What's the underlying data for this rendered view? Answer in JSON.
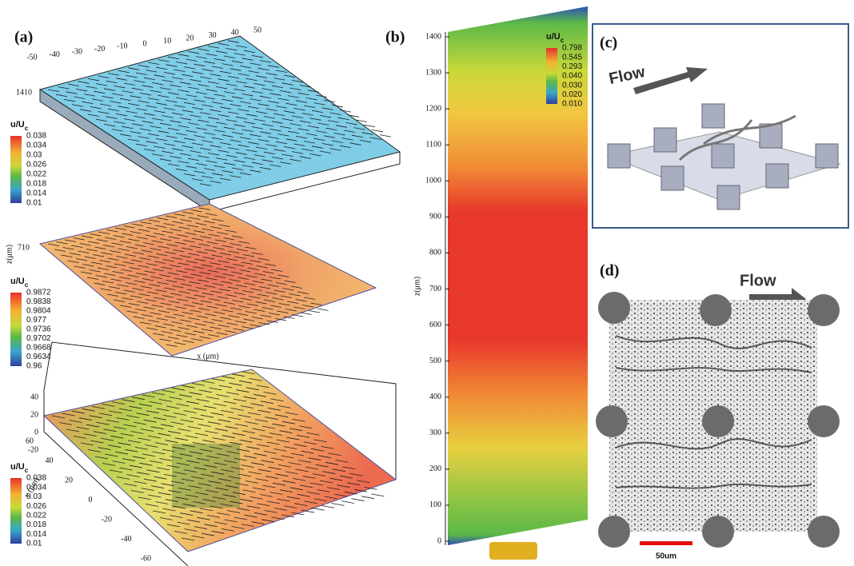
{
  "panel_a": {
    "label": "(a)",
    "top_axis_ticks": [
      "-50",
      "-40",
      "-30",
      "-20",
      "-10",
      "0",
      "10",
      "20",
      "30",
      "40",
      "50"
    ],
    "top_z_label": "1410",
    "colorbar_1": {
      "title": "u/U",
      "subscript": "c",
      "ticks": [
        "0.038",
        "0.034",
        "0.03",
        "0.026",
        "0.022",
        "0.018",
        "0.014",
        "0.01"
      ]
    },
    "mid_z_axis_label": "z(μm)",
    "mid_z_label": "710",
    "colorbar_2": {
      "title": "u/U",
      "subscript": "c",
      "ticks": [
        "0.9872",
        "0.9838",
        "0.9804",
        "0.977",
        "0.9736",
        "0.9702",
        "0.9668",
        "0.9634",
        "0.96"
      ]
    },
    "bottom_x_axis_label": "x (μm)",
    "bottom_z_ticks": [
      "40",
      "20",
      "0",
      "-20"
    ],
    "bottom_y_axis_label": "y (μm)",
    "bottom_y_ticks": [
      "60",
      "40",
      "20",
      "0",
      "-20",
      "-40",
      "-60"
    ],
    "colorbar_3": {
      "title": "u/U",
      "subscript": "c",
      "ticks": [
        "0.038",
        "0.034",
        "0.03",
        "0.026",
        "0.022",
        "0.018",
        "0.014",
        "0.01"
      ]
    }
  },
  "panel_b": {
    "label": "(b)",
    "z_axis_label": "z(μm)",
    "z_ticks": [
      "0",
      "100",
      "200",
      "300",
      "400",
      "500",
      "600",
      "700",
      "800",
      "900",
      "1000",
      "1100",
      "1200",
      "1300",
      "1400"
    ],
    "colorbar": {
      "title": "u/U",
      "subscript": "c",
      "ticks": [
        "0.798",
        "0.545",
        "0.293",
        "0.040",
        "0.030",
        "0.020",
        "0.010"
      ]
    }
  },
  "panel_c": {
    "label": "(c)",
    "flow_label": "Flow"
  },
  "panel_d": {
    "label": "(d)",
    "flow_label": "Flow",
    "scale_bar_label": "50um"
  }
}
